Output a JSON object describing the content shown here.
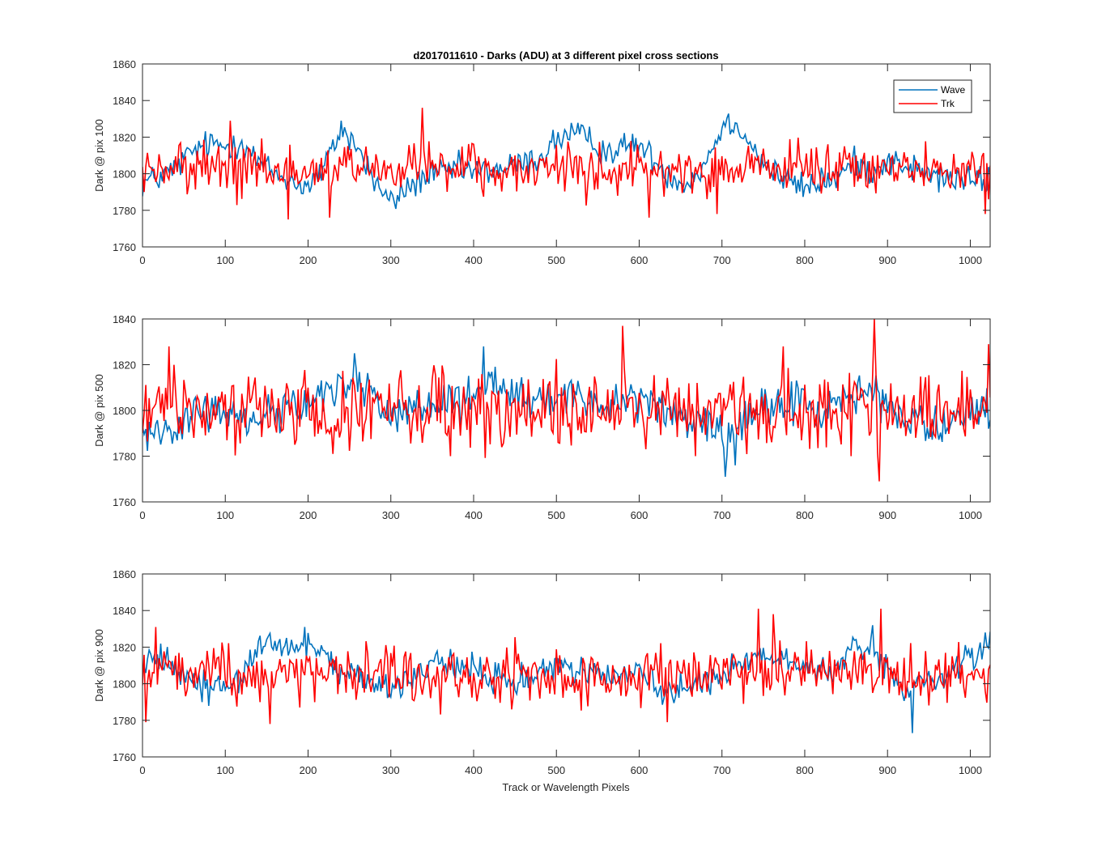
{
  "figure": {
    "title": "d2017011610 - Darks (ADU) at 3 different pixel cross sections",
    "xlabel": "Track or Wavelength Pixels"
  },
  "colors": {
    "wave": "#0072bd",
    "trk": "#ff0000",
    "axes": "#262626",
    "background": "#ffffff"
  },
  "chart_data": [
    {
      "type": "line",
      "ylabel": "Dark @ pix 100",
      "xlim": [
        0,
        1024
      ],
      "ylim": [
        1760,
        1860
      ],
      "xticks": [
        0,
        100,
        200,
        300,
        400,
        500,
        600,
        700,
        800,
        900,
        1000
      ],
      "yticks": [
        1760,
        1780,
        1800,
        1820,
        1840,
        1860
      ],
      "grid": false,
      "legend": {
        "placement": "top-right",
        "entries": [
          "Wave",
          "Trk"
        ]
      },
      "series": [
        {
          "name": "Wave",
          "x": [
            0,
            20,
            40,
            60,
            80,
            100,
            120,
            140,
            160,
            180,
            200,
            220,
            240,
            260,
            280,
            300,
            320,
            340,
            360,
            380,
            400,
            420,
            440,
            460,
            480,
            500,
            520,
            540,
            560,
            580,
            600,
            620,
            640,
            660,
            680,
            700,
            720,
            740,
            760,
            780,
            800,
            820,
            840,
            860,
            880,
            900,
            920,
            940,
            960,
            980,
            1000,
            1024
          ],
          "values": [
            1795,
            1798,
            1803,
            1812,
            1816,
            1815,
            1818,
            1806,
            1800,
            1796,
            1793,
            1803,
            1825,
            1814,
            1796,
            1784,
            1792,
            1798,
            1800,
            1803,
            1801,
            1802,
            1803,
            1806,
            1808,
            1819,
            1822,
            1818,
            1812,
            1814,
            1816,
            1806,
            1798,
            1795,
            1806,
            1826,
            1828,
            1812,
            1801,
            1796,
            1792,
            1796,
            1798,
            1806,
            1802,
            1807,
            1805,
            1801,
            1798,
            1797,
            1796,
            1797
          ],
          "noise": 4,
          "step": 2
        },
        {
          "name": "Trk",
          "x": [
            0,
            1024
          ],
          "values": [
            1802,
            1802
          ],
          "noise": 7,
          "step": 2,
          "spikes": [
            [
              2,
              1790
            ],
            [
              105,
              1829
            ],
            [
              176,
              1775
            ],
            [
              225,
              1776
            ],
            [
              338,
              1836
            ],
            [
              612,
              1776
            ],
            [
              694,
              1778
            ],
            [
              1067,
              1826
            ],
            [
              1017,
              1778
            ],
            [
              1022,
              1786
            ]
          ]
        }
      ]
    },
    {
      "type": "line",
      "ylabel": "Dark @ pix 500",
      "xlim": [
        0,
        1024
      ],
      "ylim": [
        1760,
        1840
      ],
      "xticks": [
        0,
        100,
        200,
        300,
        400,
        500,
        600,
        700,
        800,
        900,
        1000
      ],
      "yticks": [
        1760,
        1780,
        1800,
        1820,
        1840
      ],
      "grid": false,
      "series": [
        {
          "name": "Wave",
          "x": [
            0,
            20,
            40,
            60,
            80,
            100,
            120,
            140,
            160,
            180,
            200,
            220,
            240,
            260,
            280,
            300,
            320,
            340,
            360,
            380,
            400,
            420,
            440,
            460,
            480,
            500,
            520,
            540,
            560,
            580,
            600,
            620,
            640,
            660,
            680,
            700,
            720,
            740,
            760,
            780,
            800,
            820,
            840,
            860,
            880,
            900,
            920,
            940,
            960,
            980,
            1000,
            1024
          ],
          "values": [
            1790,
            1792,
            1795,
            1797,
            1799,
            1800,
            1796,
            1798,
            1800,
            1802,
            1803,
            1806,
            1812,
            1815,
            1804,
            1800,
            1799,
            1800,
            1802,
            1803,
            1807,
            1812,
            1806,
            1803,
            1804,
            1806,
            1805,
            1802,
            1804,
            1806,
            1807,
            1802,
            1798,
            1796,
            1793,
            1788,
            1791,
            1798,
            1801,
            1803,
            1804,
            1800,
            1803,
            1806,
            1808,
            1804,
            1796,
            1795,
            1792,
            1794,
            1800,
            1801
          ],
          "noise": 4.5,
          "step": 2,
          "spikes": [
            [
              256,
              1825
            ],
            [
              412,
              1828
            ],
            [
              704,
              1771
            ],
            [
              715,
              1776
            ]
          ]
        },
        {
          "name": "Trk",
          "x": [
            0,
            1024
          ],
          "values": [
            1800,
            1800
          ],
          "noise": 8,
          "step": 2,
          "spikes": [
            [
              31,
              1828
            ],
            [
              229,
              1781
            ],
            [
              372,
              1780
            ],
            [
              580,
              1837
            ],
            [
              668,
              1780
            ],
            [
              774,
              1828
            ],
            [
              856,
              1780
            ],
            [
              884,
              1840
            ],
            [
              890,
              1769
            ],
            [
              1022,
              1829
            ]
          ]
        }
      ]
    },
    {
      "type": "line",
      "ylabel": "Dark @ pix 900",
      "xlim": [
        0,
        1024
      ],
      "ylim": [
        1760,
        1860
      ],
      "xticks": [
        0,
        100,
        200,
        300,
        400,
        500,
        600,
        700,
        800,
        900,
        1000
      ],
      "yticks": [
        1760,
        1780,
        1800,
        1820,
        1840,
        1860
      ],
      "grid": false,
      "series": [
        {
          "name": "Wave",
          "x": [
            0,
            20,
            40,
            60,
            80,
            100,
            120,
            140,
            160,
            180,
            200,
            220,
            240,
            260,
            280,
            300,
            320,
            340,
            360,
            380,
            400,
            420,
            440,
            460,
            480,
            500,
            520,
            540,
            560,
            580,
            600,
            620,
            640,
            660,
            680,
            700,
            720,
            740,
            760,
            780,
            800,
            820,
            840,
            860,
            880,
            900,
            920,
            940,
            960,
            980,
            1000,
            1024
          ],
          "values": [
            1812,
            1814,
            1808,
            1802,
            1799,
            1800,
            1804,
            1818,
            1820,
            1816,
            1822,
            1815,
            1806,
            1804,
            1800,
            1796,
            1801,
            1806,
            1810,
            1812,
            1807,
            1803,
            1800,
            1803,
            1806,
            1809,
            1807,
            1806,
            1804,
            1806,
            1806,
            1801,
            1794,
            1798,
            1800,
            1804,
            1812,
            1816,
            1814,
            1812,
            1809,
            1806,
            1810,
            1820,
            1818,
            1808,
            1797,
            1800,
            1802,
            1805,
            1814,
            1822
          ],
          "noise": 4,
          "step": 2,
          "spikes": [
            [
              196,
              1831
            ],
            [
              882,
              1832
            ],
            [
              929,
              1773
            ],
            [
              1018,
              1828
            ]
          ]
        },
        {
          "name": "Trk",
          "x": [
            0,
            1024
          ],
          "values": [
            1805,
            1805
          ],
          "noise": 8,
          "step": 2,
          "spikes": [
            [
              3,
              1779
            ],
            [
              15,
              1831
            ],
            [
              153,
              1778
            ],
            [
              633,
              1779
            ],
            [
              744,
              1841
            ],
            [
              761,
              1838
            ],
            [
              891,
              1841
            ]
          ]
        }
      ]
    }
  ]
}
